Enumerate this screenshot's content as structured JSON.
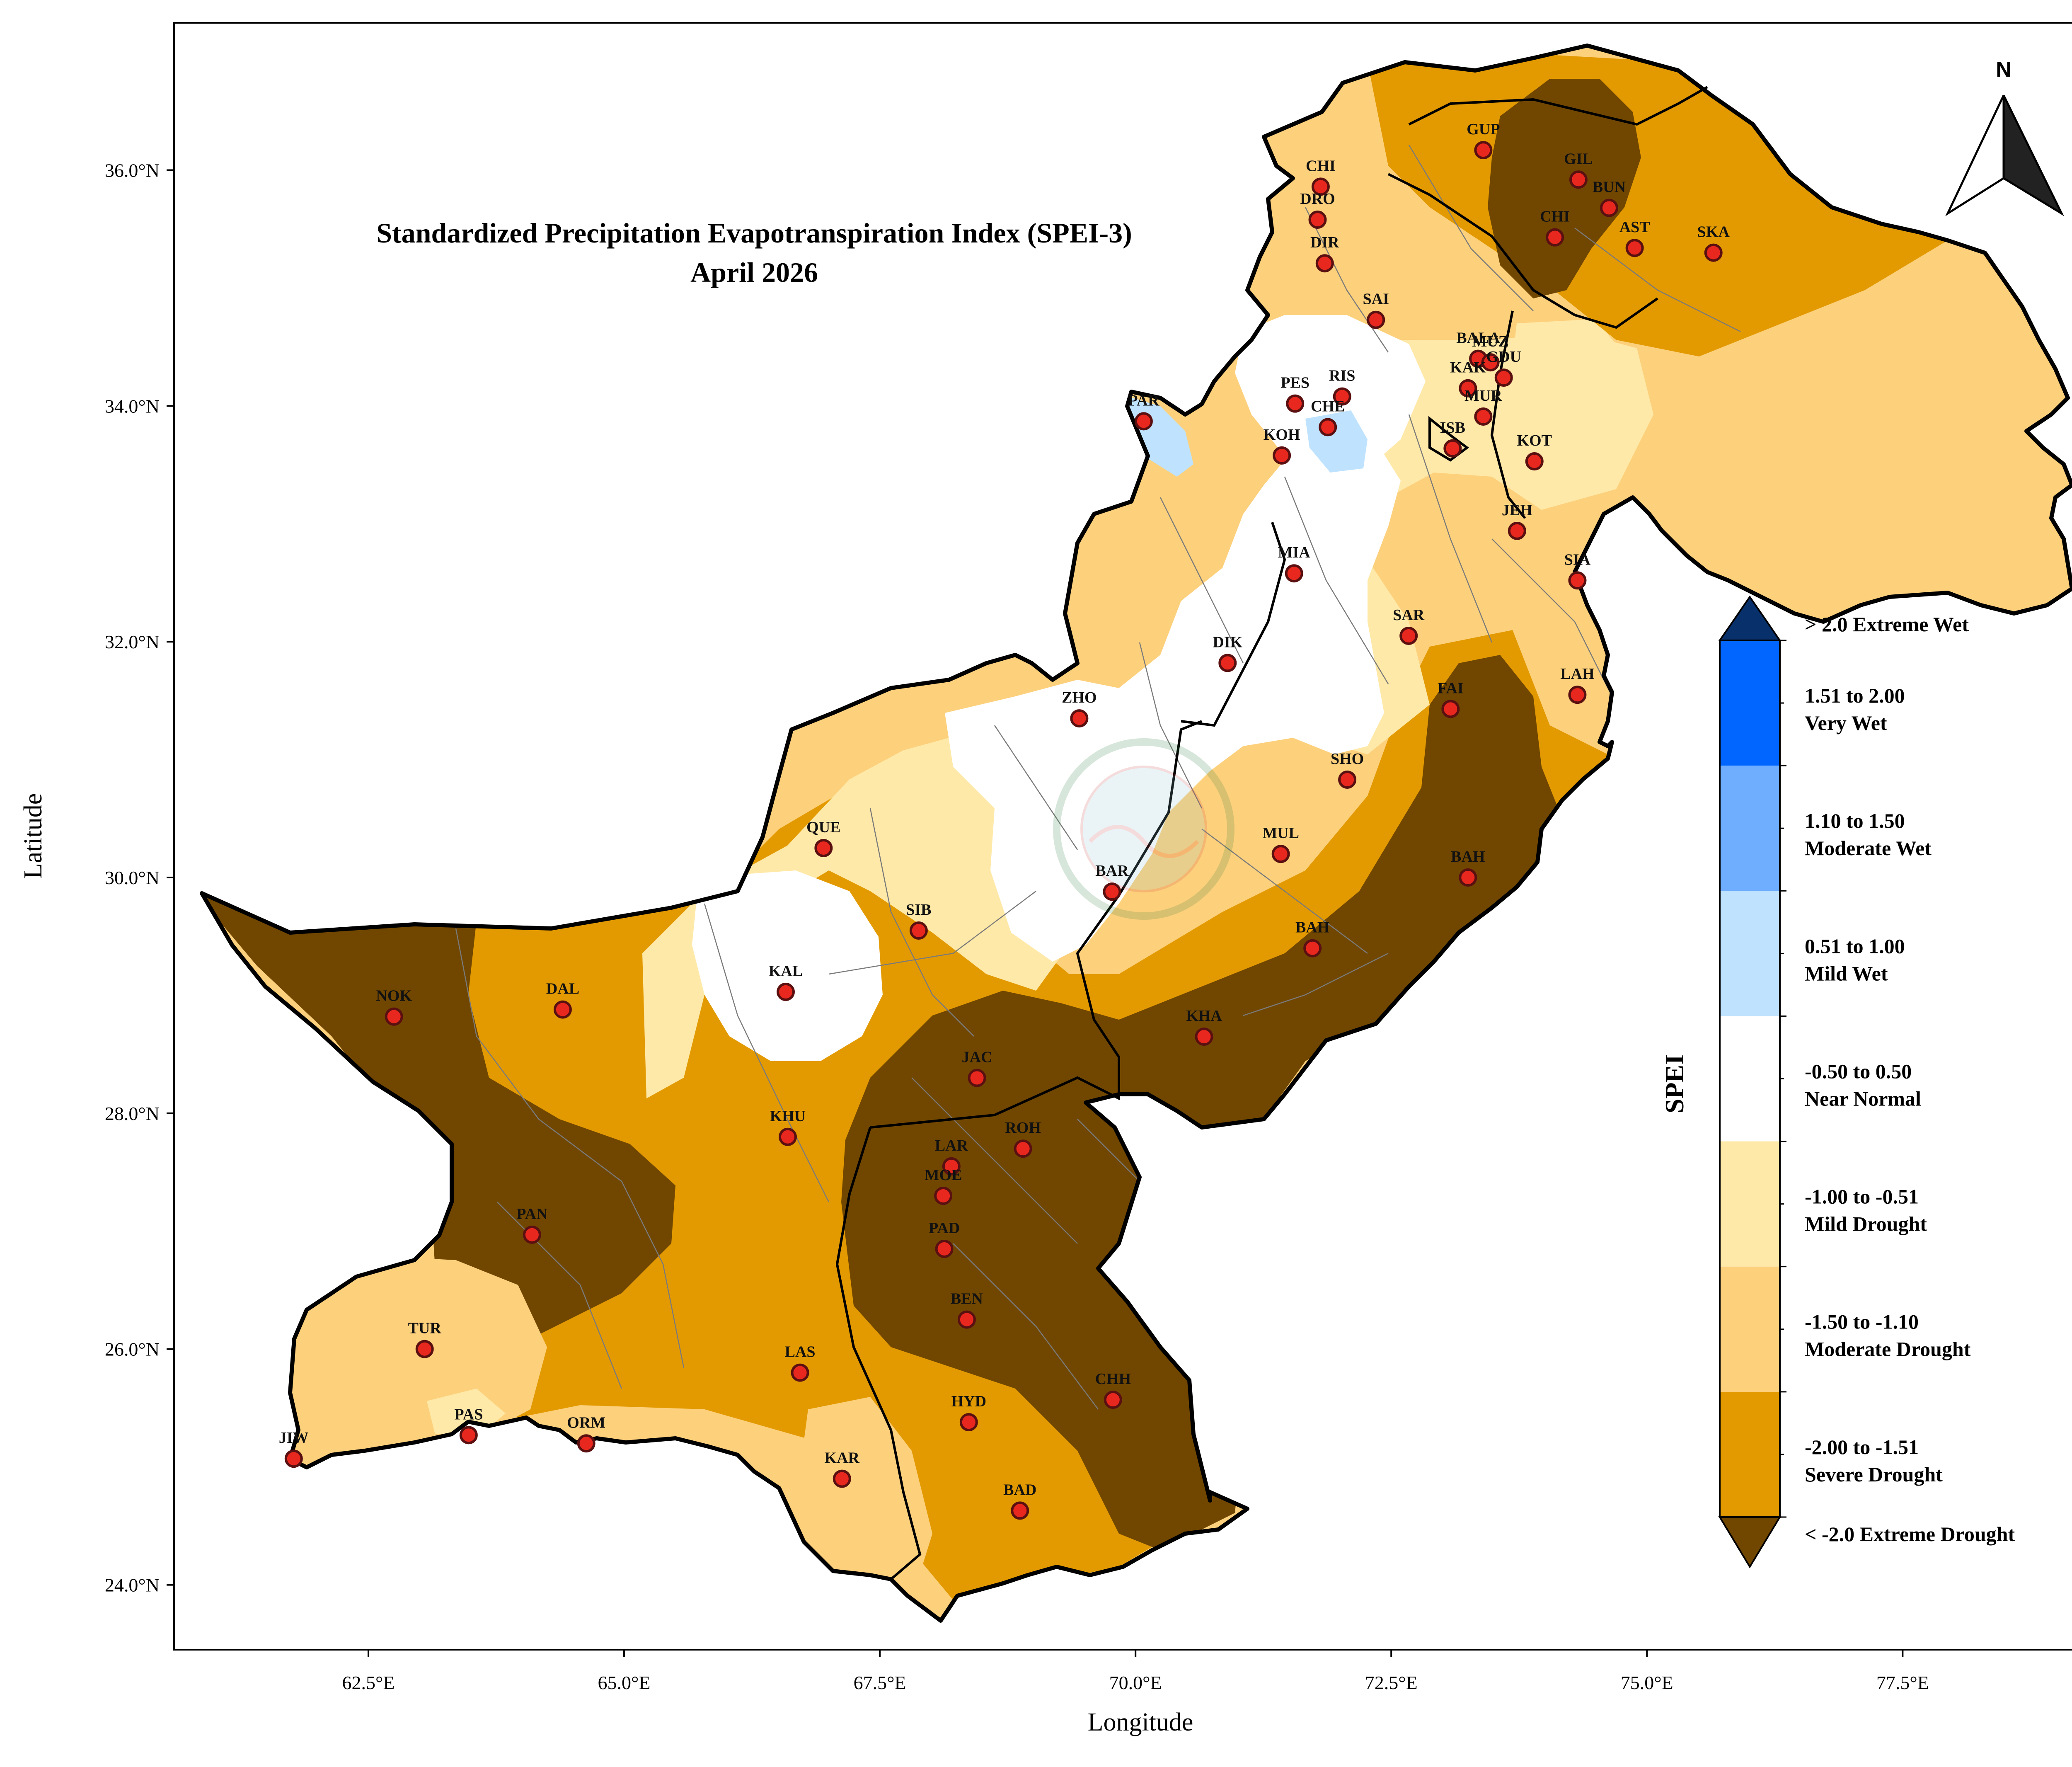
{
  "title": {
    "line1": "Standardized Precipitation Evapotranspiration Index (SPEI-3)",
    "line2": "April 2026"
  },
  "axes": {
    "xlabel": "Longitude",
    "ylabel": "Latitude",
    "xticks": [
      "62.5°E",
      "65.0°E",
      "67.5°E",
      "70.0°E",
      "72.5°E",
      "75.0°E",
      "77.5°E"
    ],
    "yticks": [
      "24.0°N",
      "26.0°N",
      "28.0°N",
      "30.0°N",
      "32.0°N",
      "34.0°N",
      "36.0°N"
    ],
    "xtick_values": [
      62.5,
      65.0,
      67.5,
      70.0,
      72.5,
      75.0,
      77.5
    ],
    "ytick_values": [
      24,
      26,
      28,
      30,
      32,
      34,
      36
    ],
    "xlim": [
      60.6,
      79.5
    ],
    "ylim": [
      23.45,
      37.25
    ]
  },
  "north_arrow": {
    "label": "N"
  },
  "legend": {
    "title": "SPEI",
    "classes": [
      {
        "line1": "> 2.0 Extreme Wet",
        "line2": "",
        "color": "#08306b"
      },
      {
        "line1": "1.51 to 2.00",
        "line2": "Very Wet",
        "color": "#0066ff"
      },
      {
        "line1": "1.10 to 1.50",
        "line2": "Moderate Wet",
        "color": "#6faeff"
      },
      {
        "line1": "0.51 to 1.00",
        "line2": "Mild Wet",
        "color": "#bfe3ff"
      },
      {
        "line1": "-0.50 to 0.50",
        "line2": "Near Normal",
        "color": "#ffffff"
      },
      {
        "line1": "-1.00 to -0.51",
        "line2": "Mild Drought",
        "color": "#ffe9a8"
      },
      {
        "line1": "-1.50 to -1.10",
        "line2": "Moderate Drought",
        "color": "#fdd07c"
      },
      {
        "line1": "-2.00 to -1.51",
        "line2": "Severe Drought",
        "color": "#e39a00"
      },
      {
        "line1": "< -2.0 Extreme Drought",
        "line2": "",
        "color": "#714700"
      }
    ]
  },
  "stations": [
    {
      "code": "GUP",
      "lon": 73.4,
      "lat": 36.17
    },
    {
      "code": "GIL",
      "lon": 74.33,
      "lat": 35.92
    },
    {
      "code": "CHI",
      "lon": 71.81,
      "lat": 35.86
    },
    {
      "code": "DRO",
      "lon": 71.78,
      "lat": 35.58
    },
    {
      "code": "BUN",
      "lon": 74.63,
      "lat": 35.68
    },
    {
      "code": "CHI",
      "lon": 74.1,
      "lat": 35.43
    },
    {
      "code": "AST",
      "lon": 74.88,
      "lat": 35.34
    },
    {
      "code": "SKA",
      "lon": 75.65,
      "lat": 35.3
    },
    {
      "code": "DIR",
      "lon": 71.85,
      "lat": 35.21
    },
    {
      "code": "SAI",
      "lon": 72.35,
      "lat": 34.73
    },
    {
      "code": "BALA",
      "lon": 73.35,
      "lat": 34.4
    },
    {
      "code": "MUZ",
      "lon": 73.47,
      "lat": 34.37
    },
    {
      "code": "KAK",
      "lon": 73.25,
      "lat": 34.15
    },
    {
      "code": "GDU",
      "lon": 73.6,
      "lat": 34.24
    },
    {
      "code": "RIS",
      "lon": 72.02,
      "lat": 34.08
    },
    {
      "code": "PES",
      "lon": 71.56,
      "lat": 34.02
    },
    {
      "code": "CHE",
      "lon": 71.88,
      "lat": 33.82
    },
    {
      "code": "PAR",
      "lon": 70.08,
      "lat": 33.87
    },
    {
      "code": "MUR",
      "lon": 73.4,
      "lat": 33.91
    },
    {
      "code": "ISB",
      "lon": 73.1,
      "lat": 33.64
    },
    {
      "code": "KOH",
      "lon": 71.43,
      "lat": 33.58
    },
    {
      "code": "KOT",
      "lon": 73.9,
      "lat": 33.53
    },
    {
      "code": "JEH",
      "lon": 73.73,
      "lat": 32.94
    },
    {
      "code": "MIA",
      "lon": 71.55,
      "lat": 32.58
    },
    {
      "code": "SIA",
      "lon": 74.32,
      "lat": 32.52
    },
    {
      "code": "SAR",
      "lon": 72.67,
      "lat": 32.05
    },
    {
      "code": "DIK",
      "lon": 70.9,
      "lat": 31.82
    },
    {
      "code": "LAH",
      "lon": 74.32,
      "lat": 31.55
    },
    {
      "code": "FAI",
      "lon": 73.08,
      "lat": 31.43
    },
    {
      "code": "ZHO",
      "lon": 69.45,
      "lat": 31.35
    },
    {
      "code": "SHO",
      "lon": 72.07,
      "lat": 30.83
    },
    {
      "code": "QUE",
      "lon": 66.95,
      "lat": 30.25
    },
    {
      "code": "MUL",
      "lon": 71.42,
      "lat": 30.2
    },
    {
      "code": "BAH",
      "lon": 73.25,
      "lat": 30.0
    },
    {
      "code": "BAR",
      "lon": 69.77,
      "lat": 29.88
    },
    {
      "code": "SIB",
      "lon": 67.88,
      "lat": 29.55
    },
    {
      "code": "BAH",
      "lon": 71.73,
      "lat": 29.4
    },
    {
      "code": "NOK",
      "lon": 62.75,
      "lat": 28.82
    },
    {
      "code": "DAL",
      "lon": 64.4,
      "lat": 28.88
    },
    {
      "code": "KAL",
      "lon": 66.58,
      "lat": 29.03
    },
    {
      "code": "KHA",
      "lon": 70.67,
      "lat": 28.65
    },
    {
      "code": "JAC",
      "lon": 68.45,
      "lat": 28.3
    },
    {
      "code": "KHU",
      "lon": 66.6,
      "lat": 27.8
    },
    {
      "code": "ROH",
      "lon": 68.9,
      "lat": 27.7
    },
    {
      "code": "LAR",
      "lon": 68.2,
      "lat": 27.55
    },
    {
      "code": "MOE",
      "lon": 68.12,
      "lat": 27.3
    },
    {
      "code": "PAN",
      "lon": 64.1,
      "lat": 26.97
    },
    {
      "code": "PAD",
      "lon": 68.13,
      "lat": 26.85
    },
    {
      "code": "BEN",
      "lon": 68.35,
      "lat": 26.25
    },
    {
      "code": "TUR",
      "lon": 63.05,
      "lat": 26.0
    },
    {
      "code": "LAS",
      "lon": 66.72,
      "lat": 25.8
    },
    {
      "code": "CHH",
      "lon": 69.78,
      "lat": 25.57
    },
    {
      "code": "PAS",
      "lon": 63.48,
      "lat": 25.27
    },
    {
      "code": "HYD",
      "lon": 68.37,
      "lat": 25.38
    },
    {
      "code": "ORM",
      "lon": 64.63,
      "lat": 25.2
    },
    {
      "code": "JIW",
      "lon": 61.77,
      "lat": 25.07
    },
    {
      "code": "KAR",
      "lon": 67.13,
      "lat": 24.9
    },
    {
      "code": "BAD",
      "lon": 68.87,
      "lat": 24.63
    }
  ],
  "colors": {
    "station_fill": "#e8281e",
    "station_stroke": "#5a1010",
    "border": "#000000",
    "district_lines": "#7a7a7a"
  }
}
